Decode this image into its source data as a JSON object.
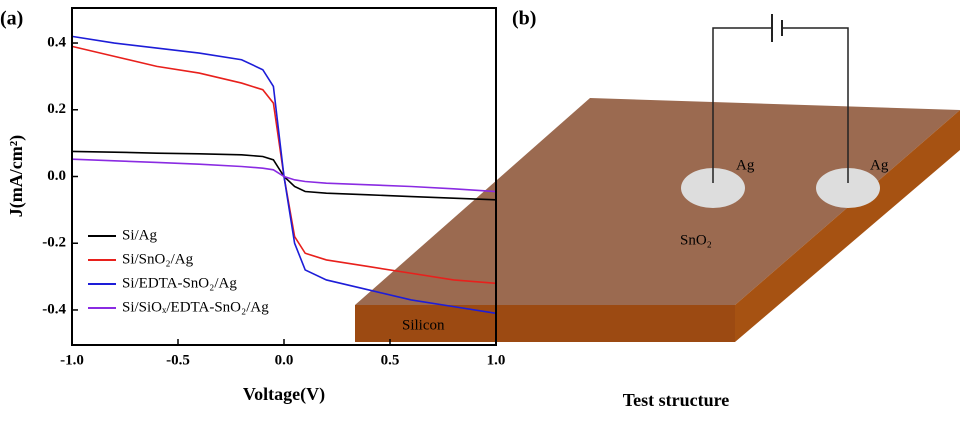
{
  "chart_data": {
    "type": "line",
    "panel_label": "(a)",
    "xlabel": "Voltage(V)",
    "ylabel": "J(mA/cm²)",
    "x": [
      -1,
      -0.8,
      -0.6,
      -0.4,
      -0.2,
      -0.1,
      -0.05,
      0,
      0.05,
      0.1,
      0.2,
      0.4,
      0.6,
      0.8,
      1
    ],
    "series": [
      {
        "name": "Si/Ag",
        "color": "#000000",
        "values": [
          0.075,
          0.073,
          0.07,
          0.068,
          0.065,
          0.06,
          0.05,
          0,
          -0.03,
          -0.045,
          -0.05,
          -0.055,
          -0.06,
          -0.065,
          -0.07
        ]
      },
      {
        "name": "Si/SnO₂/Ag",
        "color": "#e8201c",
        "values": [
          0.39,
          0.36,
          0.33,
          0.31,
          0.28,
          0.26,
          0.22,
          0,
          -0.18,
          -0.23,
          -0.25,
          -0.27,
          -0.29,
          -0.31,
          -0.32
        ]
      },
      {
        "name": "Si/EDTA-SnO₂/Ag",
        "color": "#1d1dd8",
        "values": [
          0.42,
          0.4,
          0.385,
          0.37,
          0.35,
          0.32,
          0.27,
          0,
          -0.2,
          -0.28,
          -0.31,
          -0.34,
          -0.37,
          -0.39,
          -0.41
        ]
      },
      {
        "name": "Si/SiOₓ/EDTA-SnO₂/Ag",
        "color": "#8a2be2",
        "values": [
          0.052,
          0.047,
          0.042,
          0.037,
          0.03,
          0.025,
          0.02,
          0,
          -0.01,
          -0.015,
          -0.02,
          -0.025,
          -0.03,
          -0.037,
          -0.045
        ]
      }
    ],
    "xlim": [
      -1,
      1
    ],
    "ylim": [
      -0.505,
      0.505
    ],
    "xticks": [
      {
        "value": -1,
        "label": "-1.0"
      },
      {
        "value": -0.5,
        "label": "-0.5"
      },
      {
        "value": 0,
        "label": "0.0"
      },
      0.5,
      {
        "value": 1,
        "label": "1.0"
      }
    ],
    "yticks": [
      -0.4,
      -0.2,
      {
        "value": 0,
        "label": "0.0"
      },
      0.2,
      0.4
    ],
    "legend": "lower-left"
  },
  "diagram": {
    "panel_label": "(b)",
    "electrodes": [
      "Ag",
      "Ag"
    ],
    "layer": "SnO₂",
    "substrate": "Silicon",
    "caption": "Test structure"
  }
}
